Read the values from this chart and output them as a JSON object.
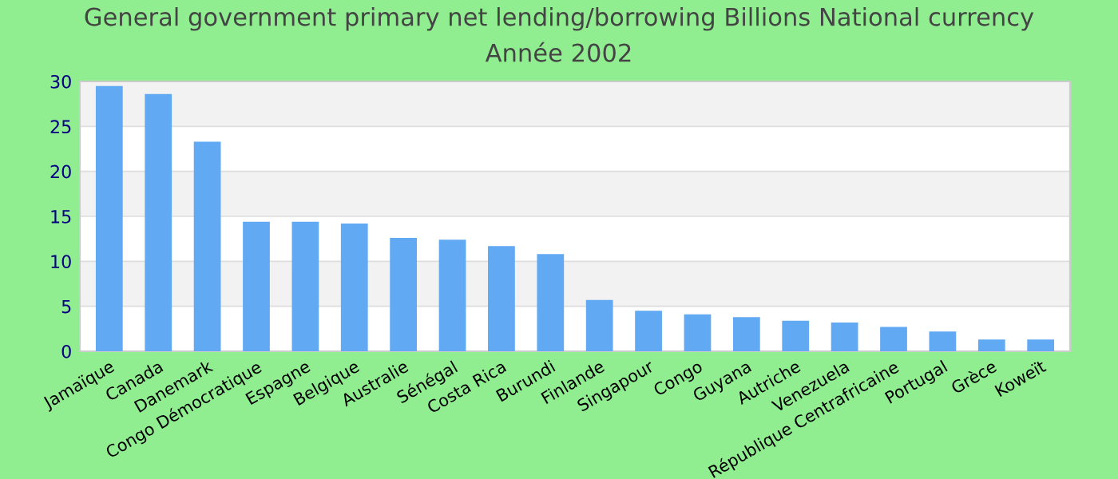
{
  "chart_data": {
    "type": "bar",
    "title": "General government primary net lending/borrowing Billions National currency",
    "subtitle": "Année 2002",
    "categories": [
      "Jamaïque",
      "Canada",
      "Danemark",
      "Congo Démocratique",
      "Espagne",
      "Belgique",
      "Australie",
      "Sénégal",
      "Costa Rica",
      "Burundi",
      "Finlande",
      "Singapour",
      "Congo",
      "Guyana",
      "Autriche",
      "Venezuela",
      "République Centrafricaine",
      "Portugal",
      "Grèce",
      "Koweït"
    ],
    "values": [
      29.5,
      28.6,
      23.3,
      14.4,
      14.4,
      14.2,
      12.6,
      12.4,
      11.7,
      10.8,
      5.7,
      4.5,
      4.1,
      3.8,
      3.4,
      3.2,
      2.7,
      2.2,
      1.3,
      1.3
    ],
    "color": "#62a9f4",
    "ylim": [
      0,
      30
    ],
    "yticks": [
      0,
      5,
      10,
      15,
      20,
      25,
      30
    ],
    "grid": "y",
    "legend": false
  }
}
